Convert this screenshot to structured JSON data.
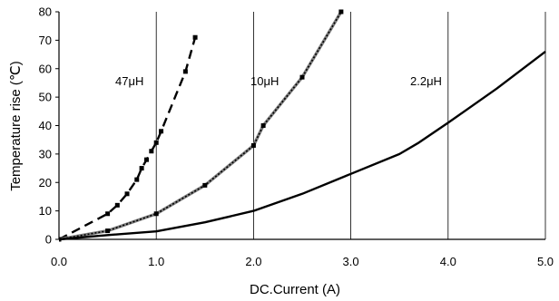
{
  "chart_data": {
    "type": "line",
    "title": "",
    "xlabel": "DC.Current (A)",
    "ylabel": "Temperature rise (℃)",
    "xlim": [
      0,
      5
    ],
    "ylim": [
      0,
      80
    ],
    "x_ticks": [
      "0.0",
      "1.0",
      "2.0",
      "3.0",
      "4.0",
      "5.0"
    ],
    "y_ticks": [
      "0",
      "10",
      "20",
      "30",
      "40",
      "50",
      "60",
      "70",
      "80"
    ],
    "grid": "vertical",
    "colors": {
      "line": "#000000",
      "grid": "#000000",
      "series_10uH_marker": "#808080"
    },
    "series": [
      {
        "name": "47μH",
        "style": "dashed",
        "marker": "square",
        "x": [
          0.0,
          0.5,
          0.6,
          0.7,
          0.8,
          0.85,
          0.9,
          0.95,
          1.0,
          1.05,
          1.3,
          1.4
        ],
        "y": [
          0,
          9,
          12,
          16,
          21,
          25,
          28,
          31,
          34,
          38,
          59,
          71
        ]
      },
      {
        "name": "10μH",
        "style": "solid-grey-markers",
        "marker": "square",
        "x": [
          0.0,
          0.5,
          1.0,
          1.5,
          2.0,
          2.1,
          2.5,
          2.9
        ],
        "y": [
          0,
          3,
          9,
          19,
          33,
          40,
          57,
          80
        ]
      },
      {
        "name": "2.2μH",
        "style": "solid",
        "marker": "none",
        "x": [
          0.0,
          0.5,
          1.0,
          1.5,
          2.0,
          2.5,
          3.0,
          3.5,
          3.7,
          4.0,
          4.5,
          5.0
        ],
        "y": [
          0,
          1.5,
          2.8,
          6,
          10,
          16,
          23,
          30,
          34,
          41,
          53,
          66
        ]
      }
    ]
  }
}
